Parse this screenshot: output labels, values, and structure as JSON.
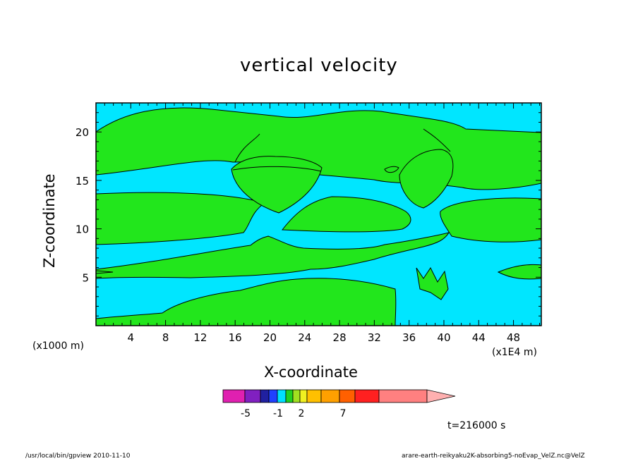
{
  "chart_data": {
    "type": "contour",
    "title": "vertical velocity",
    "xlabel": "X-coordinate",
    "ylabel": "Z-coordinate",
    "x_unit_note": "(x1000 m)",
    "x_scale_note": "(x1E4 m)",
    "time_label": "t=216000 s",
    "xlim": [
      0,
      51.2
    ],
    "ylim": [
      0,
      23
    ],
    "x_ticks": [
      4,
      8,
      12,
      16,
      20,
      24,
      28,
      32,
      36,
      40,
      44,
      48
    ],
    "x_tick_labels": [
      "4",
      "8",
      "12",
      "16",
      "20",
      "24",
      "28",
      "32",
      "36",
      "40",
      "44",
      "48"
    ],
    "y_ticks": [
      5,
      10,
      15,
      20
    ],
    "y_tick_labels": [
      "5",
      "10",
      "15",
      "20"
    ],
    "grid": false,
    "colorbar": {
      "colors": [
        "#e020b0",
        "#8020c0",
        "#2020a0",
        "#2040ff",
        "#00e0ff",
        "#20d020",
        "#a0e020",
        "#f0f020",
        "#ffc000",
        "#ffa000",
        "#ff6000",
        "#ff2020",
        "#ff8080"
      ],
      "extend_color": "#ffb0b0",
      "tick_labels": [
        "-5",
        "-1",
        "2",
        "7"
      ]
    },
    "colors": {
      "negative": "#00e6ff",
      "positive": "#22e61c",
      "contour": "#000000"
    }
  },
  "footer": {
    "left": "/usr/local/bin/gpview  2010-11-10",
    "right": "arare-earth-reikyaku2K-absorbing5-noEvap_VelZ.nc@VelZ"
  }
}
